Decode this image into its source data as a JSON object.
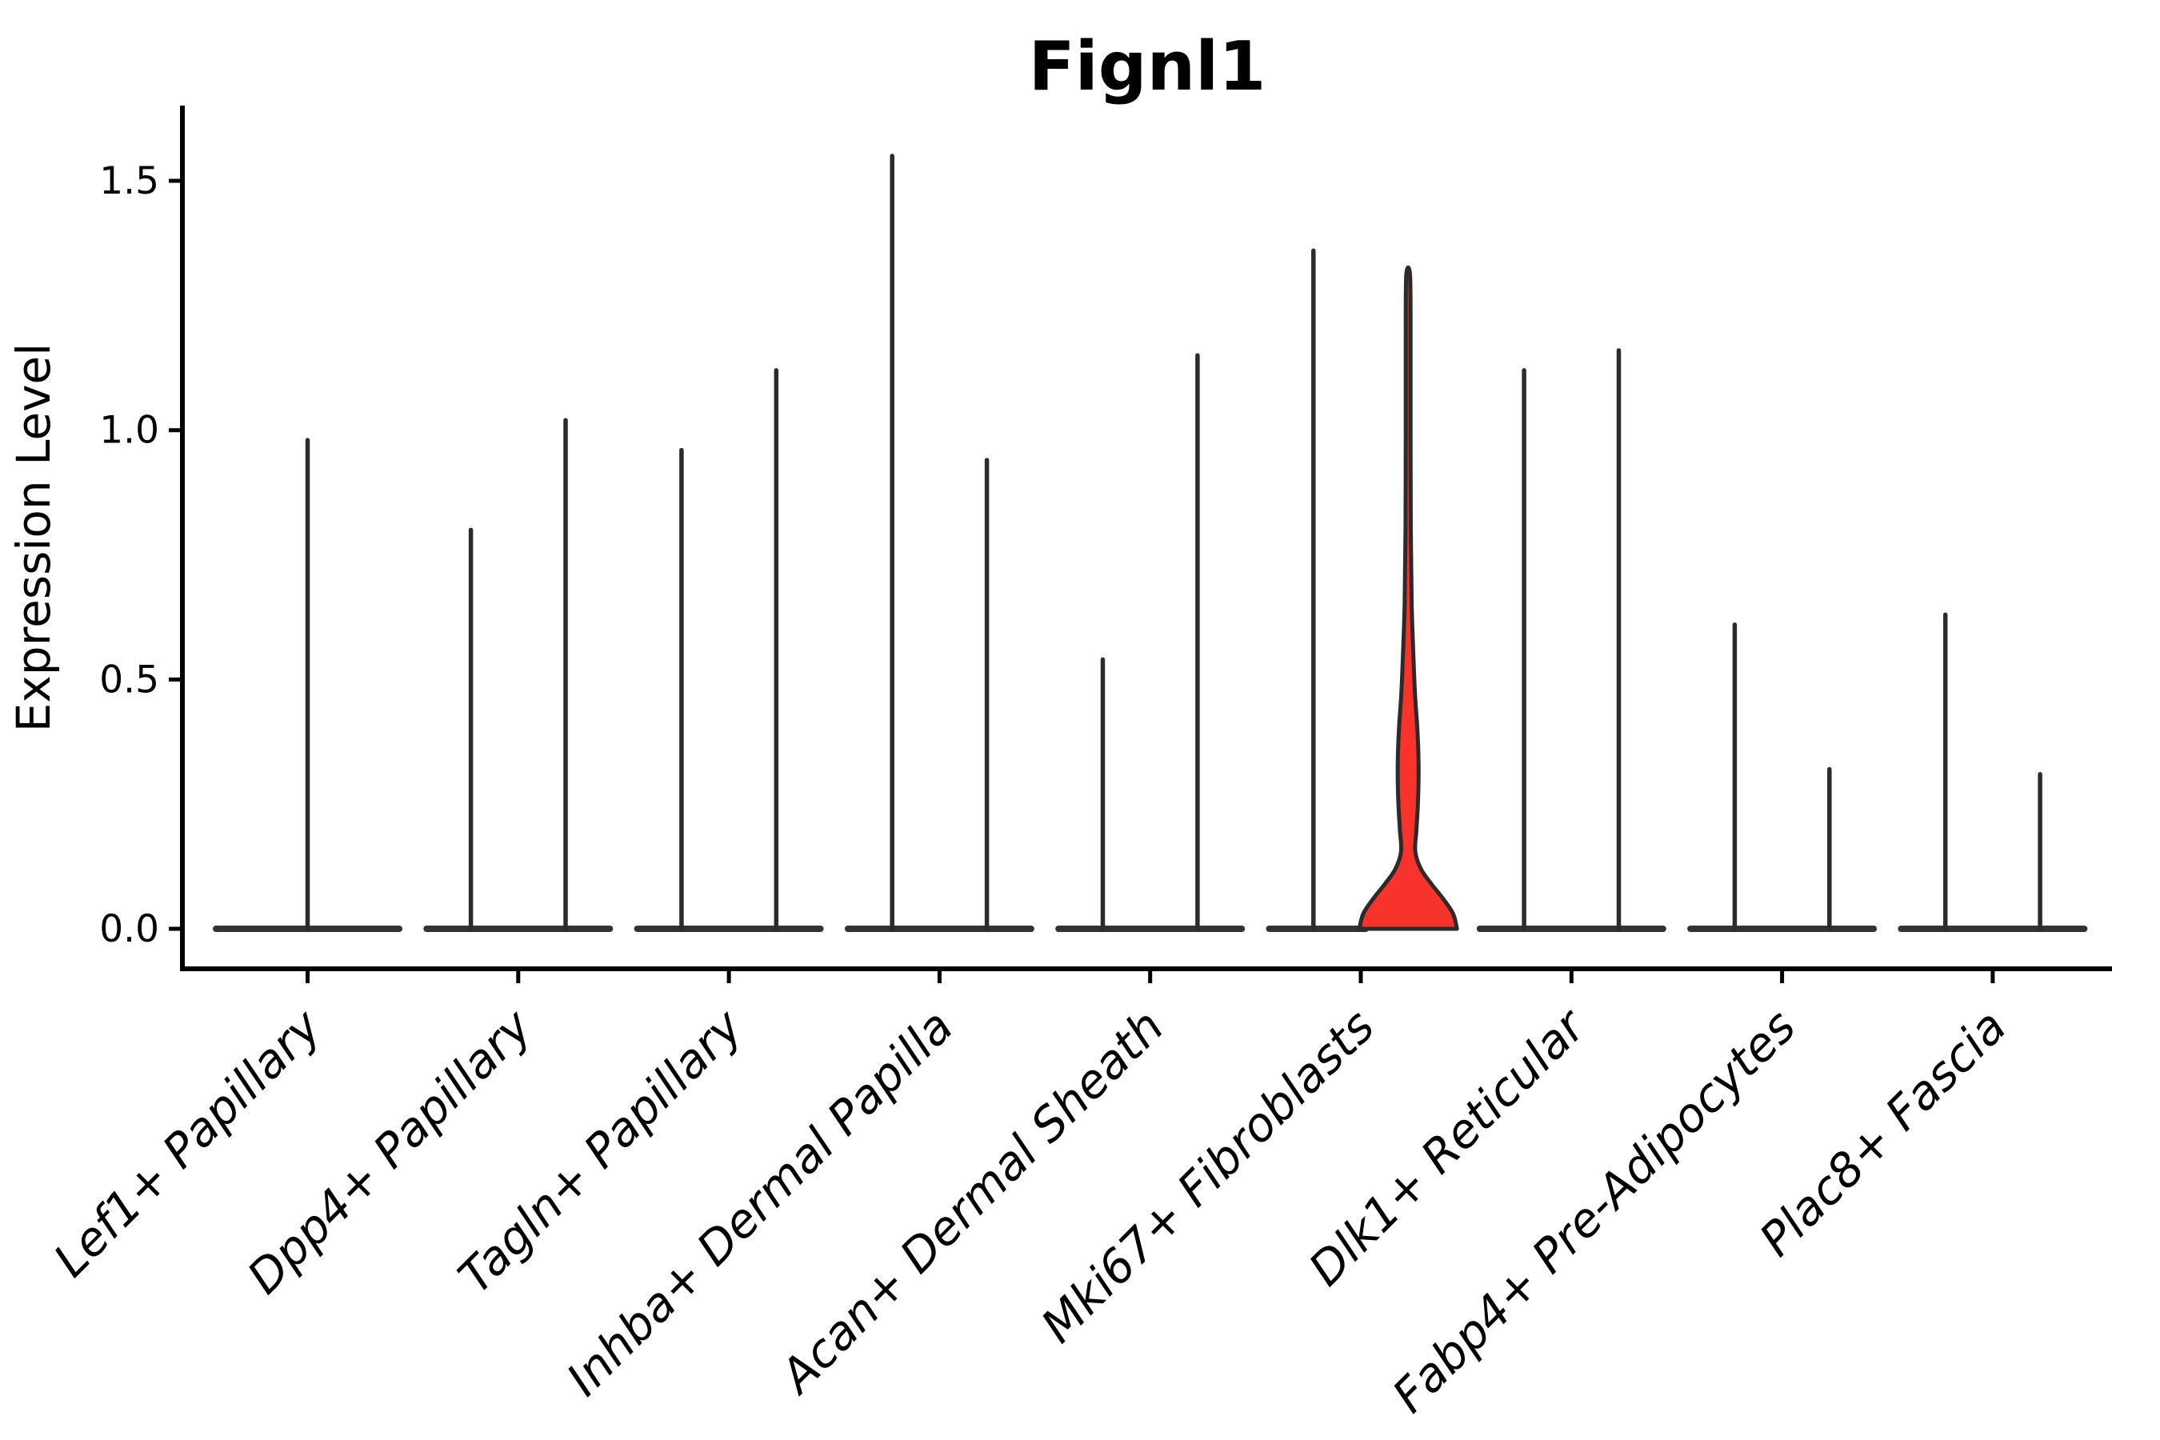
{
  "title": "Fignl1",
  "colors": {
    "axis": "#000000",
    "violin_stroke": "#2b2b2b",
    "violin_base_bar": "#333333",
    "highlight_fill": "#f7332b",
    "text": "#000000",
    "background": "#ffffff"
  },
  "chart_data": {
    "type": "violin",
    "title": "Fignl1",
    "xlabel": "",
    "ylabel": "Expression Level",
    "ylim": [
      -0.08,
      1.65
    ],
    "yticks": [
      {
        "value": 0.0,
        "label": "0.0"
      },
      {
        "value": 0.5,
        "label": "0.5"
      },
      {
        "value": 1.0,
        "label": "1.0"
      },
      {
        "value": 1.5,
        "label": "1.5"
      }
    ],
    "grid": false,
    "legend": "none",
    "categories": [
      "Lef1+ Papillary",
      "Dpp4+ Papillary",
      "Tagln+ Papillary",
      "Inhba+ Dermal Papilla",
      "Acan+ Dermal Sheath",
      "Mki67+ Fibroblasts",
      "Dlk1+ Reticular",
      "Fabp4+ Pre-Adipocytes",
      "Plac8+ Fascia"
    ],
    "description": "Violin plot of Fignl1 expression; most cells express 0 (wide flat base at y=0) with a thin density spike up to the max expressed value. Two sub-violins per category except the first. The right sub-violin of Mki67+ Fibroblasts is filled red with visible density bulges.",
    "violins": [
      {
        "category_index": 0,
        "position": "center",
        "max_expression": 0.98,
        "filled": false
      },
      {
        "category_index": 1,
        "position": "left",
        "max_expression": 0.8,
        "filled": false
      },
      {
        "category_index": 1,
        "position": "right",
        "max_expression": 1.02,
        "filled": false
      },
      {
        "category_index": 2,
        "position": "left",
        "max_expression": 0.96,
        "filled": false
      },
      {
        "category_index": 2,
        "position": "right",
        "max_expression": 1.12,
        "filled": false
      },
      {
        "category_index": 3,
        "position": "left",
        "max_expression": 1.55,
        "filled": false
      },
      {
        "category_index": 3,
        "position": "right",
        "max_expression": 0.94,
        "filled": false
      },
      {
        "category_index": 4,
        "position": "left",
        "max_expression": 0.54,
        "filled": false
      },
      {
        "category_index": 4,
        "position": "right",
        "max_expression": 1.15,
        "filled": false
      },
      {
        "category_index": 5,
        "position": "left",
        "max_expression": 1.36,
        "filled": false
      },
      {
        "category_index": 5,
        "position": "right",
        "max_expression": 1.31,
        "filled": true,
        "fill_color": "#f7332b",
        "density_profile": [
          [
            0.0,
            1.03
          ],
          [
            0.03,
            0.95
          ],
          [
            0.06,
            0.74
          ],
          [
            0.09,
            0.49
          ],
          [
            0.12,
            0.27
          ],
          [
            0.155,
            0.15
          ],
          [
            0.2,
            0.175
          ],
          [
            0.26,
            0.21
          ],
          [
            0.33,
            0.22
          ],
          [
            0.4,
            0.195
          ],
          [
            0.47,
            0.145
          ],
          [
            0.55,
            0.11
          ],
          [
            0.65,
            0.075
          ],
          [
            0.8,
            0.056
          ],
          [
            1.0,
            0.051
          ],
          [
            1.18,
            0.051
          ],
          [
            1.31,
            0.04
          ]
        ]
      },
      {
        "category_index": 6,
        "position": "left",
        "max_expression": 1.12,
        "filled": false
      },
      {
        "category_index": 6,
        "position": "right",
        "max_expression": 1.16,
        "filled": false
      },
      {
        "category_index": 7,
        "position": "left",
        "max_expression": 0.61,
        "filled": false
      },
      {
        "category_index": 7,
        "position": "right",
        "max_expression": 0.32,
        "filled": false
      },
      {
        "category_index": 8,
        "position": "left",
        "max_expression": 0.63,
        "filled": false
      },
      {
        "category_index": 8,
        "position": "right",
        "max_expression": 0.31,
        "filled": false
      }
    ],
    "highlighted_category": "Mki67+ Fibroblasts"
  }
}
